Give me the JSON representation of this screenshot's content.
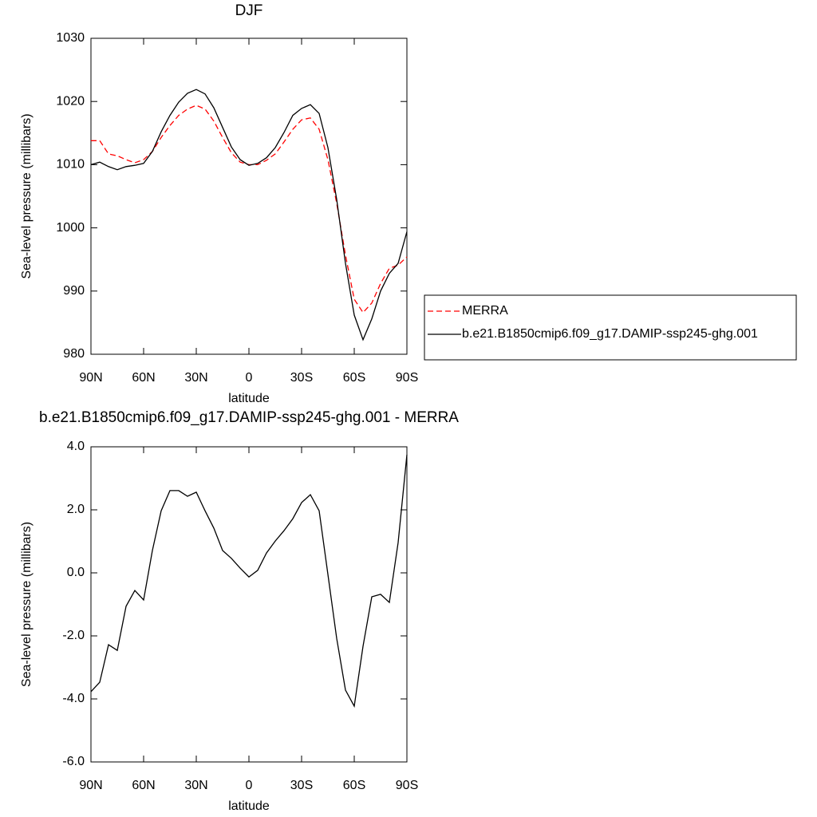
{
  "chart_data": [
    {
      "type": "line",
      "title": "DJF",
      "xlabel": "latitude",
      "ylabel": "Sea-level pressure (millibars)",
      "x": [
        90,
        85,
        80,
        75,
        70,
        65,
        60,
        55,
        50,
        45,
        40,
        35,
        30,
        25,
        20,
        15,
        10,
        5,
        0,
        -5,
        -10,
        -15,
        -20,
        -25,
        -30,
        -35,
        -40,
        -45,
        -50,
        -55,
        -60,
        -65,
        -70,
        -75,
        -80,
        -85,
        -90
      ],
      "xlim": [
        90,
        -90
      ],
      "xticks": [
        {
          "value": 90,
          "label": "90N"
        },
        {
          "value": 60,
          "label": "60N"
        },
        {
          "value": 30,
          "label": "30N"
        },
        0,
        {
          "value": -30,
          "label": "30S"
        },
        {
          "value": -60,
          "label": "60S"
        },
        {
          "value": -90,
          "label": "90S"
        }
      ],
      "ylim": [
        980,
        1030
      ],
      "yticks": [
        980,
        990,
        1000,
        1010,
        1020,
        1030
      ],
      "legend": "right",
      "series": [
        {
          "name": "MERRA",
          "color": "#ff0000",
          "dashed": true,
          "values": [
            1013.8,
            1013.8,
            1011.7,
            1011.4,
            1010.8,
            1010.3,
            1010.8,
            1012.1,
            1014.3,
            1016.2,
            1017.8,
            1018.8,
            1019.4,
            1018.8,
            1016.9,
            1014.3,
            1011.9,
            1010.4,
            1010.0,
            1010.0,
            1010.7,
            1011.7,
            1013.6,
            1015.6,
            1017.1,
            1017.4,
            1015.6,
            1010.8,
            1003.9,
            995.7,
            988.7,
            986.6,
            988.1,
            991.2,
            993.6,
            994.1,
            995.4
          ]
        },
        {
          "name": "b.e21.B1850cmip6.f09_g17.DAMIP-ssp245-ghg.001",
          "color": "#000000",
          "dashed": false,
          "values": [
            1010.0,
            1010.4,
            1009.7,
            1009.2,
            1009.7,
            1009.9,
            1010.2,
            1012.1,
            1015.2,
            1017.8,
            1019.9,
            1021.3,
            1021.9,
            1021.2,
            1019.0,
            1015.9,
            1012.8,
            1010.8,
            1009.9,
            1010.2,
            1011.1,
            1012.7,
            1015.1,
            1017.8,
            1018.9,
            1019.5,
            1018.1,
            1012.7,
            1004.5,
            994.4,
            986.2,
            982.3,
            985.6,
            990.0,
            992.8,
            994.4,
            999.4
          ]
        }
      ]
    },
    {
      "type": "line",
      "title": "b.e21.B1850cmip6.f09_g17.DAMIP-ssp245-ghg.001 - MERRA",
      "xlabel": "latitude",
      "ylabel": "Sea-level pressure (millibars)",
      "x": [
        90,
        85,
        80,
        75,
        70,
        65,
        60,
        55,
        50,
        45,
        40,
        35,
        30,
        25,
        20,
        15,
        10,
        5,
        0,
        -5,
        -10,
        -15,
        -20,
        -25,
        -30,
        -35,
        -40,
        -45,
        -50,
        -55,
        -60,
        -65,
        -70,
        -75,
        -80,
        -85,
        -90
      ],
      "xlim": [
        90,
        -90
      ],
      "xticks": [
        {
          "value": 90,
          "label": "90N"
        },
        {
          "value": 60,
          "label": "60N"
        },
        {
          "value": 30,
          "label": "30N"
        },
        0,
        {
          "value": -30,
          "label": "30S"
        },
        {
          "value": -60,
          "label": "60S"
        },
        {
          "value": -90,
          "label": "90S"
        }
      ],
      "ylim": [
        -6,
        4
      ],
      "yticks": [
        {
          "value": -6,
          "label": "-6.0"
        },
        {
          "value": -4,
          "label": "-4.0"
        },
        {
          "value": -2,
          "label": "-2.0"
        },
        {
          "value": 0,
          "label": "0.0"
        },
        {
          "value": 2,
          "label": "2.0"
        },
        {
          "value": 4,
          "label": "4.0"
        }
      ],
      "color": "#000000",
      "values": [
        -3.77,
        -3.47,
        -2.28,
        -2.46,
        -1.06,
        -0.56,
        -0.86,
        0.71,
        1.97,
        2.61,
        2.61,
        2.43,
        2.56,
        1.97,
        1.42,
        0.71,
        0.46,
        0.15,
        -0.13,
        0.08,
        0.63,
        1.01,
        1.34,
        1.72,
        2.23,
        2.48,
        1.97,
        -0.05,
        -2.08,
        -3.72,
        -4.23,
        -2.33,
        -0.76,
        -0.68,
        -0.94,
        0.96,
        3.75
      ]
    }
  ]
}
